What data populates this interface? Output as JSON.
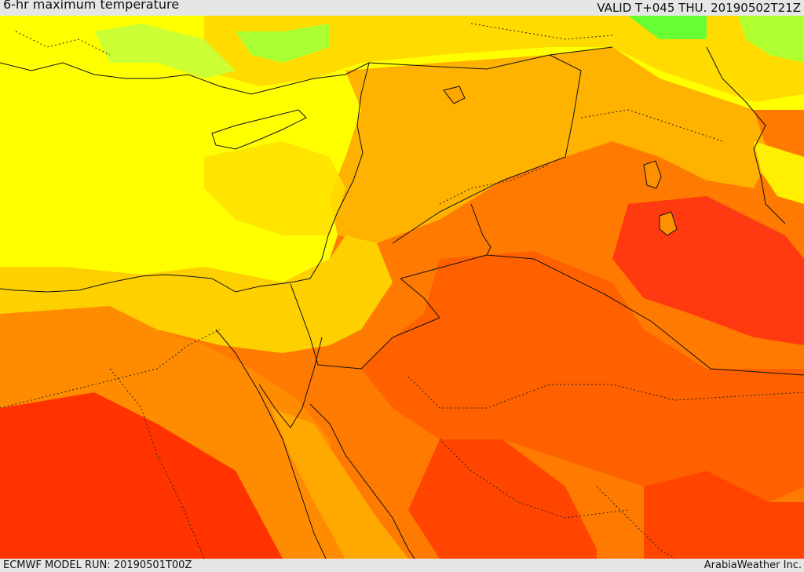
{
  "header": {
    "title": "6-hr maximum temperature",
    "valid": "VALID T+045 THU. 20190502T21Z"
  },
  "footer": {
    "model_run": "ECMWF MODEL RUN: 20190501T00Z",
    "credit": "ArabiaWeather Inc."
  },
  "map": {
    "region": "Eastern Mediterranean & Middle East",
    "colors": {
      "yellow": "#ffff00",
      "gold": "#ffd700",
      "orange_light": "#ffb300",
      "orange": "#ff8c00",
      "orange_red": "#ff6000",
      "red": "#ff3a00",
      "green_yellow": "#ccff33",
      "green": "#66ff33"
    }
  }
}
